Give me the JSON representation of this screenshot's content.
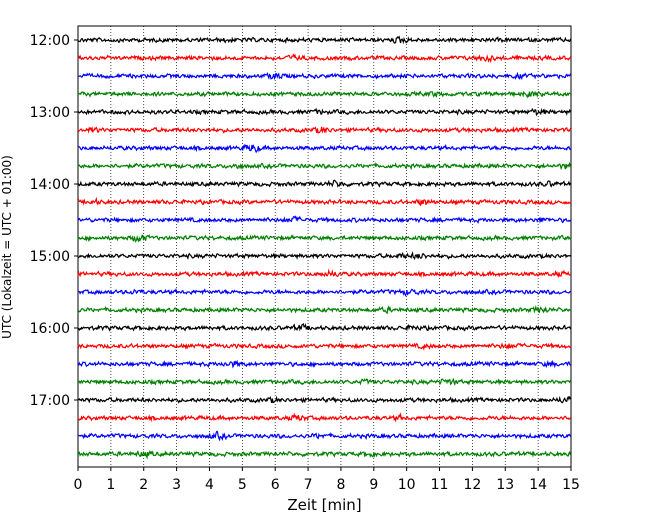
{
  "chart_data": {
    "type": "line",
    "xlabel": "Zeit  [min]",
    "ylabel": "UTC (Lokalzeit = UTC + 01:00)",
    "xlim": [
      0,
      15
    ],
    "x_ticks": [
      0,
      1,
      2,
      3,
      4,
      5,
      6,
      7,
      8,
      9,
      10,
      11,
      12,
      13,
      14,
      15
    ],
    "y_tick_labels": [
      "12:00",
      "13:00",
      "14:00",
      "15:00",
      "16:00",
      "17:00"
    ],
    "trace_rows": 24,
    "rows_per_hour": 4,
    "grid_x": true,
    "colors": [
      "#000000",
      "#ff0000",
      "#0000ff",
      "#008000"
    ]
  }
}
